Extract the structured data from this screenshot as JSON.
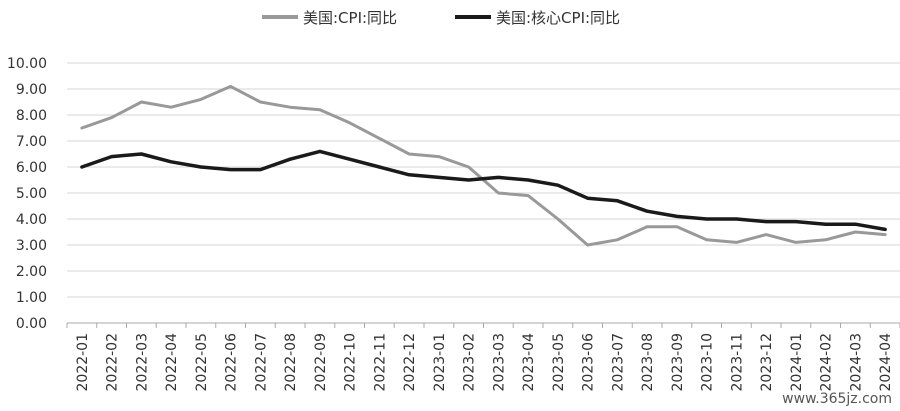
{
  "chart_data": {
    "type": "line",
    "categories": [
      "2022-01",
      "2022-02",
      "2022-03",
      "2022-04",
      "2022-05",
      "2022-06",
      "2022-07",
      "2022-08",
      "2022-09",
      "2022-10",
      "2022-11",
      "2022-12",
      "2023-01",
      "2023-02",
      "2023-03",
      "2023-04",
      "2023-05",
      "2023-06",
      "2023-07",
      "2023-08",
      "2023-09",
      "2023-10",
      "2023-11",
      "2023-12",
      "2024-01",
      "2024-02",
      "2024-03",
      "2024-04"
    ],
    "series": [
      {
        "name": "美国:CPI:同比",
        "color": "#999999",
        "values": [
          7.5,
          7.9,
          8.5,
          8.3,
          8.6,
          9.1,
          8.5,
          8.3,
          8.2,
          7.7,
          7.1,
          6.5,
          6.4,
          6.0,
          5.0,
          4.9,
          4.0,
          3.0,
          3.2,
          3.7,
          3.7,
          3.2,
          3.1,
          3.4,
          3.1,
          3.2,
          3.5,
          3.4
        ]
      },
      {
        "name": "美国:核心CPI:同比",
        "color": "#1a1a1a",
        "values": [
          6.0,
          6.4,
          6.5,
          6.2,
          6.0,
          5.9,
          5.9,
          6.3,
          6.6,
          6.3,
          6.0,
          5.7,
          5.6,
          5.5,
          5.6,
          5.5,
          5.3,
          4.8,
          4.7,
          4.3,
          4.1,
          4.0,
          4.0,
          3.9,
          3.9,
          3.8,
          3.8,
          3.6
        ]
      }
    ],
    "yticks": [
      "0.00",
      "1.00",
      "2.00",
      "3.00",
      "4.00",
      "5.00",
      "6.00",
      "7.00",
      "8.00",
      "9.00",
      "10.00"
    ],
    "ylim": [
      0,
      10
    ],
    "grid": true,
    "legend_position": "top-center",
    "title": "",
    "xlabel": "",
    "ylabel": ""
  },
  "watermark": "www.365jz.com"
}
